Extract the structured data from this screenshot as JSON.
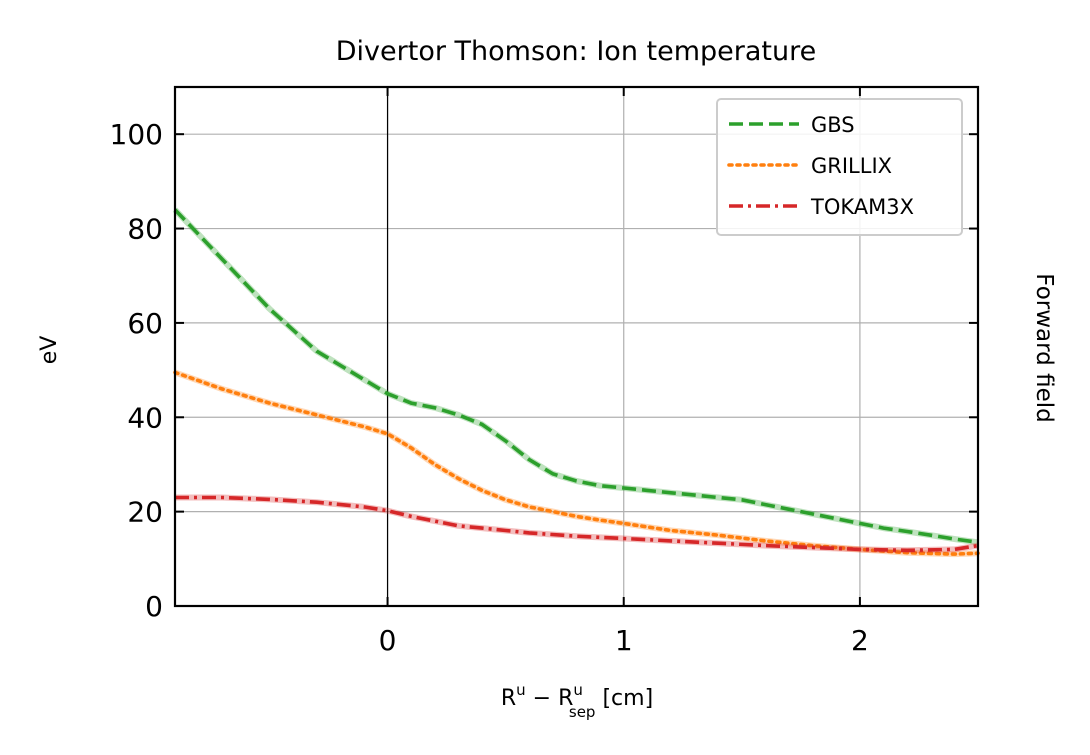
{
  "chart_data": {
    "type": "line",
    "title": "Divertor Thomson: Ion temperature",
    "xlabel": {
      "base": "R",
      "sup": "u",
      "minus": " − ",
      "base2": "R",
      "sub": "sep",
      "sup2": "u",
      "unit": " [cm]"
    },
    "ylabel": "eV",
    "side_label": "Forward field",
    "xlim": [
      -0.9,
      2.5
    ],
    "ylim": [
      0,
      110
    ],
    "xticks": [
      0,
      1,
      2
    ],
    "yticks": [
      0,
      20,
      40,
      60,
      80,
      100
    ],
    "grid": true,
    "separatrix_x": 0,
    "legend_position": "top-right",
    "series": [
      {
        "name": "GBS",
        "color": "#2ca02c",
        "style": "dashed",
        "x": [
          -0.9,
          -0.7,
          -0.5,
          -0.3,
          -0.1,
          0.0,
          0.1,
          0.2,
          0.3,
          0.4,
          0.5,
          0.6,
          0.7,
          0.8,
          0.9,
          1.0,
          1.1,
          1.2,
          1.3,
          1.4,
          1.5,
          1.6,
          1.7,
          1.8,
          1.9,
          2.0,
          2.1,
          2.2,
          2.3,
          2.4,
          2.5
        ],
        "y": [
          84,
          73.5,
          63,
          54,
          48,
          45,
          43,
          42,
          40.5,
          38.5,
          35,
          31,
          28,
          26.5,
          25.5,
          25,
          24.5,
          24,
          23.5,
          23,
          22.5,
          21.5,
          20.5,
          19.5,
          18.5,
          17.5,
          16.5,
          15.8,
          15,
          14.2,
          13.5
        ]
      },
      {
        "name": "GRILLIX",
        "color": "#ff7f0e",
        "style": "dotted",
        "x": [
          -0.9,
          -0.7,
          -0.5,
          -0.3,
          -0.1,
          0.0,
          0.1,
          0.2,
          0.3,
          0.4,
          0.5,
          0.6,
          0.7,
          0.8,
          0.9,
          1.0,
          1.2,
          1.4,
          1.6,
          1.8,
          2.0,
          2.2,
          2.4,
          2.5
        ],
        "y": [
          49.5,
          46,
          43,
          40.5,
          38,
          36.5,
          33.5,
          30,
          27,
          24.5,
          22.5,
          21,
          20,
          19,
          18.2,
          17.5,
          16,
          15,
          13.8,
          12.8,
          12,
          11.3,
          11,
          11.2
        ]
      },
      {
        "name": "TOKAM3X",
        "color": "#d62728",
        "style": "dashdot",
        "x": [
          -0.9,
          -0.7,
          -0.5,
          -0.3,
          -0.1,
          0.0,
          0.1,
          0.2,
          0.3,
          0.4,
          0.5,
          0.6,
          0.8,
          1.0,
          1.2,
          1.4,
          1.6,
          1.8,
          2.0,
          2.2,
          2.4,
          2.5
        ],
        "y": [
          23,
          23,
          22.6,
          22,
          21,
          20.2,
          19,
          18,
          17,
          16.5,
          16,
          15.5,
          14.8,
          14.3,
          13.8,
          13.3,
          12.8,
          12.4,
          12,
          11.8,
          12,
          12.8
        ]
      }
    ]
  }
}
